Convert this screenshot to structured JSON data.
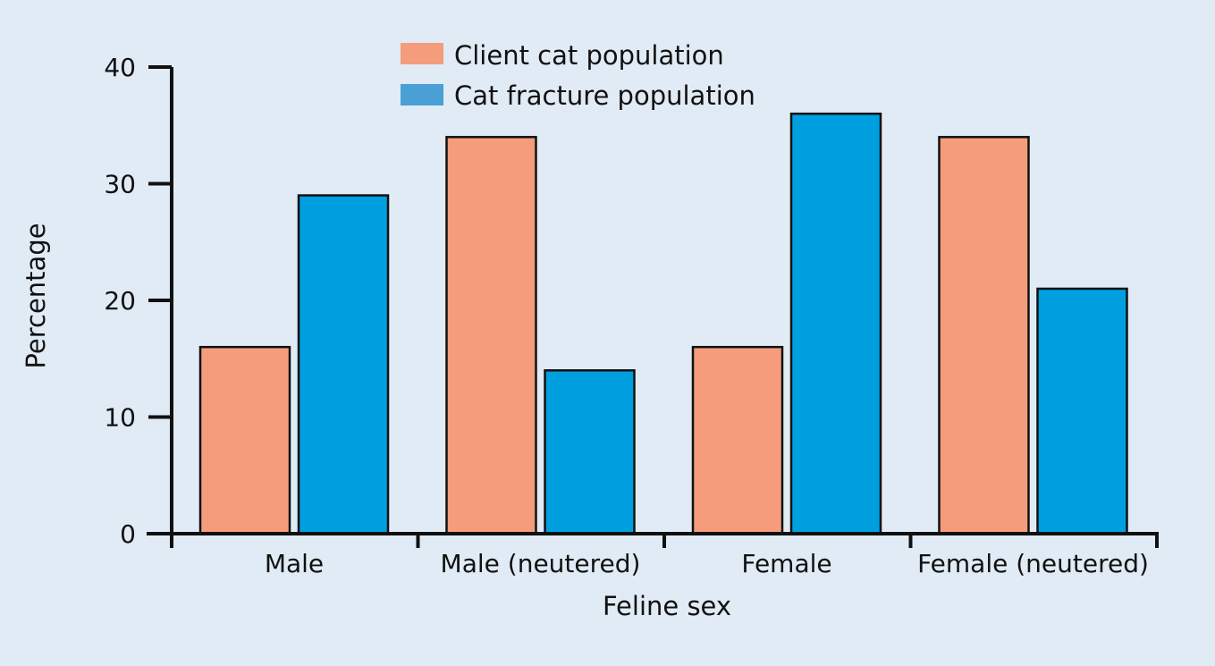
{
  "chart_data": {
    "type": "bar",
    "categories": [
      "Male",
      "Male (neutered)",
      "Female",
      "Female (neutered)"
    ],
    "series": [
      {
        "name": "Client cat population",
        "values": [
          16,
          34,
          16,
          34
        ],
        "color": "#f49c7c"
      },
      {
        "name": "Cat fracture population",
        "values": [
          29,
          14,
          36,
          21
        ],
        "color": "#009fe0"
      }
    ],
    "legend_colors": [
      "#f49c7c",
      "#4a9fd5"
    ],
    "xlabel": "Feline sex",
    "ylabel": "Percentage",
    "ylim": [
      0,
      40
    ],
    "yticks": [
      0,
      10,
      20,
      30,
      40
    ],
    "grid": false,
    "legend_position": "top-center"
  }
}
